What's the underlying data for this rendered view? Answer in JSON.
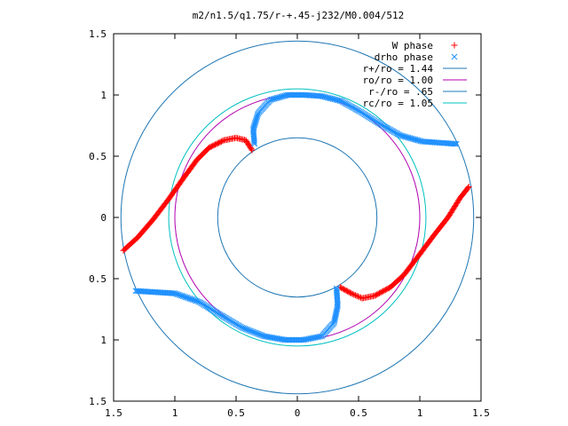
{
  "chart_data": {
    "type": "scatter",
    "title": "m2/n1.5/q1.75/r-+.45-j232/M0.004/512",
    "xlabel": "",
    "ylabel": "",
    "xlim": [
      -1.5,
      1.5
    ],
    "ylim": [
      -1.5,
      1.5
    ],
    "x_tick_labels": [
      "1.5",
      "1",
      "0.5",
      "0",
      "0.5",
      "1",
      "1.5"
    ],
    "y_tick_labels": [
      "1.5",
      "1",
      "0.5",
      "0",
      "0.5",
      "1",
      "1.5"
    ],
    "x_tick_values": [
      -1.5,
      -1,
      -0.5,
      0,
      0.5,
      1,
      1.5
    ],
    "y_tick_values": [
      1.5,
      1,
      0.5,
      0,
      -0.5,
      -1,
      -1.5
    ],
    "grid": false,
    "legend_position": "top-right",
    "series": [
      {
        "name": "W phase",
        "marker": "plus",
        "color": "#ff0000",
        "arms": [
          [
            [
              -1.42,
              -0.27
            ],
            [
              -1.3,
              -0.16
            ],
            [
              -1.18,
              -0.02
            ],
            [
              -1.05,
              0.15
            ],
            [
              -0.93,
              0.32
            ],
            [
              -0.82,
              0.47
            ],
            [
              -0.72,
              0.57
            ],
            [
              -0.6,
              0.63
            ],
            [
              -0.5,
              0.65
            ],
            [
              -0.42,
              0.63
            ],
            [
              -0.37,
              0.55
            ]
          ],
          [
            [
              1.4,
              0.25
            ],
            [
              1.33,
              0.16
            ],
            [
              1.23,
              0.0
            ],
            [
              1.12,
              -0.14
            ],
            [
              1.0,
              -0.3
            ],
            [
              0.87,
              -0.47
            ],
            [
              0.76,
              -0.57
            ],
            [
              0.63,
              -0.64
            ],
            [
              0.53,
              -0.66
            ],
            [
              0.44,
              -0.62
            ],
            [
              0.35,
              -0.57
            ]
          ]
        ]
      },
      {
        "name": "drho phase",
        "marker": "cross",
        "color": "#1e90ff",
        "arms": [
          [
            [
              -0.35,
              0.6
            ],
            [
              -0.36,
              0.72
            ],
            [
              -0.32,
              0.85
            ],
            [
              -0.22,
              0.96
            ],
            [
              -0.08,
              1.0
            ],
            [
              0.06,
              1.0
            ],
            [
              0.2,
              0.99
            ],
            [
              0.36,
              0.95
            ],
            [
              0.52,
              0.86
            ],
            [
              0.68,
              0.76
            ],
            [
              0.84,
              0.67
            ],
            [
              1.02,
              0.62
            ],
            [
              1.3,
              0.6
            ]
          ],
          [
            [
              0.32,
              -0.58
            ],
            [
              0.33,
              -0.72
            ],
            [
              0.3,
              -0.86
            ],
            [
              0.2,
              -0.97
            ],
            [
              0.05,
              -1.0
            ],
            [
              -0.1,
              -1.0
            ],
            [
              -0.27,
              -0.97
            ],
            [
              -0.45,
              -0.9
            ],
            [
              -0.62,
              -0.8
            ],
            [
              -0.8,
              -0.69
            ],
            [
              -1.0,
              -0.62
            ],
            [
              -1.32,
              -0.6
            ]
          ]
        ]
      },
      {
        "name": "r+/ro = 1.44",
        "type": "circle",
        "radius": 1.44,
        "color": "#1f77b4"
      },
      {
        "name": "ro/ro = 1.00",
        "type": "circle",
        "radius": 1.0,
        "color": "#b000b0"
      },
      {
        "name": "r-/ro = .65",
        "type": "circle",
        "radius": 0.65,
        "color": "#1f77b4"
      },
      {
        "name": "rc/ro = 1.05",
        "type": "circle",
        "radius": 1.05,
        "color": "#00c0c0"
      }
    ]
  }
}
